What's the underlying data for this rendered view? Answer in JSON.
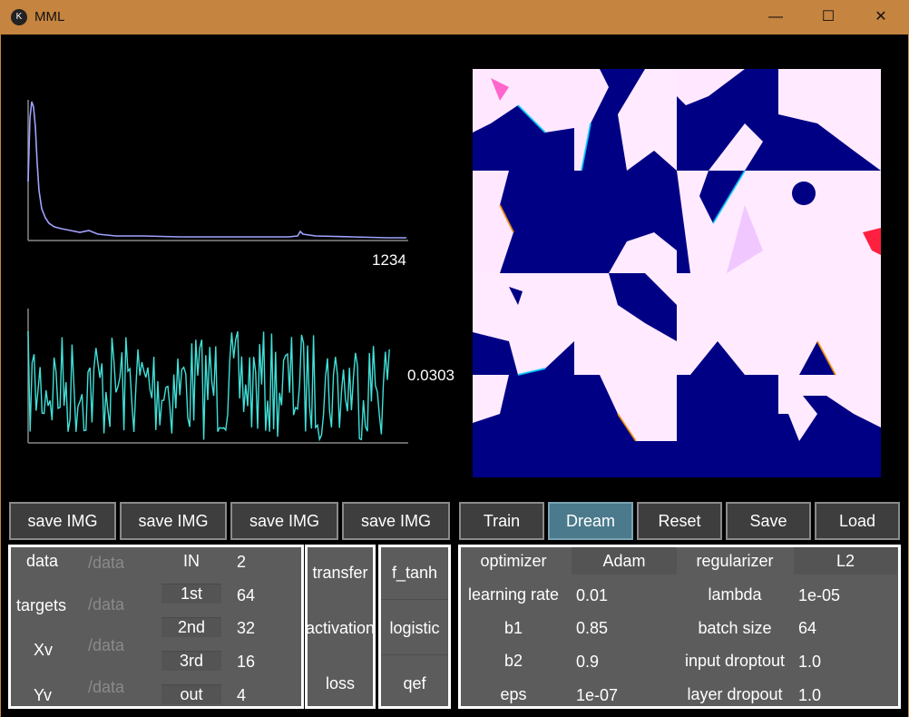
{
  "window": {
    "title": "MML",
    "icon": "kivy-logo-icon",
    "controls": [
      "minimize-icon",
      "maximize-icon",
      "close-icon"
    ]
  },
  "plots": {
    "loss_plot": {
      "label": "1234",
      "color": "#a0a2ff"
    },
    "error_plot": {
      "label": "0.0303",
      "color": "#40e0d8"
    }
  },
  "save_buttons": [
    "save IMG",
    "save IMG",
    "save IMG",
    "save IMG"
  ],
  "actions": {
    "train": "Train",
    "dream": "Dream",
    "reset": "Reset",
    "save": "Save",
    "load": "Load"
  },
  "data_panel": {
    "rows": [
      {
        "label": "data",
        "path": "/data"
      },
      {
        "label": "targets",
        "path": "/data"
      },
      {
        "label": "Xv",
        "path": "/data"
      },
      {
        "label": "Yv",
        "path": "/data"
      }
    ],
    "layers": [
      {
        "name": "IN",
        "value": "2"
      },
      {
        "name": "1st",
        "value": "64"
      },
      {
        "name": "2nd",
        "value": "32"
      },
      {
        "name": "3rd",
        "value": "16"
      },
      {
        "name": "out",
        "value": "4"
      }
    ]
  },
  "functions": [
    {
      "label": "transfer",
      "value": "f_tanh"
    },
    {
      "label": "activation",
      "value": "logistic"
    },
    {
      "label": "loss",
      "value": "qef"
    }
  ],
  "training_panel": {
    "optimizer": {
      "label": "optimizer",
      "value": "Adam"
    },
    "regularizer": {
      "label": "regularizer",
      "value": "L2"
    },
    "left": [
      {
        "label": "learning rate",
        "value": "0.01"
      },
      {
        "label": "b1",
        "value": "0.85"
      },
      {
        "label": "b2",
        "value": "0.9"
      },
      {
        "label": "eps",
        "value": "1e-07"
      }
    ],
    "right": [
      {
        "label": "lambda",
        "value": "1e-05"
      },
      {
        "label": "batch size",
        "value": "64"
      },
      {
        "label": "input droptout",
        "value": "1.0"
      },
      {
        "label": "layer dropout",
        "value": "1.0"
      }
    ]
  }
}
